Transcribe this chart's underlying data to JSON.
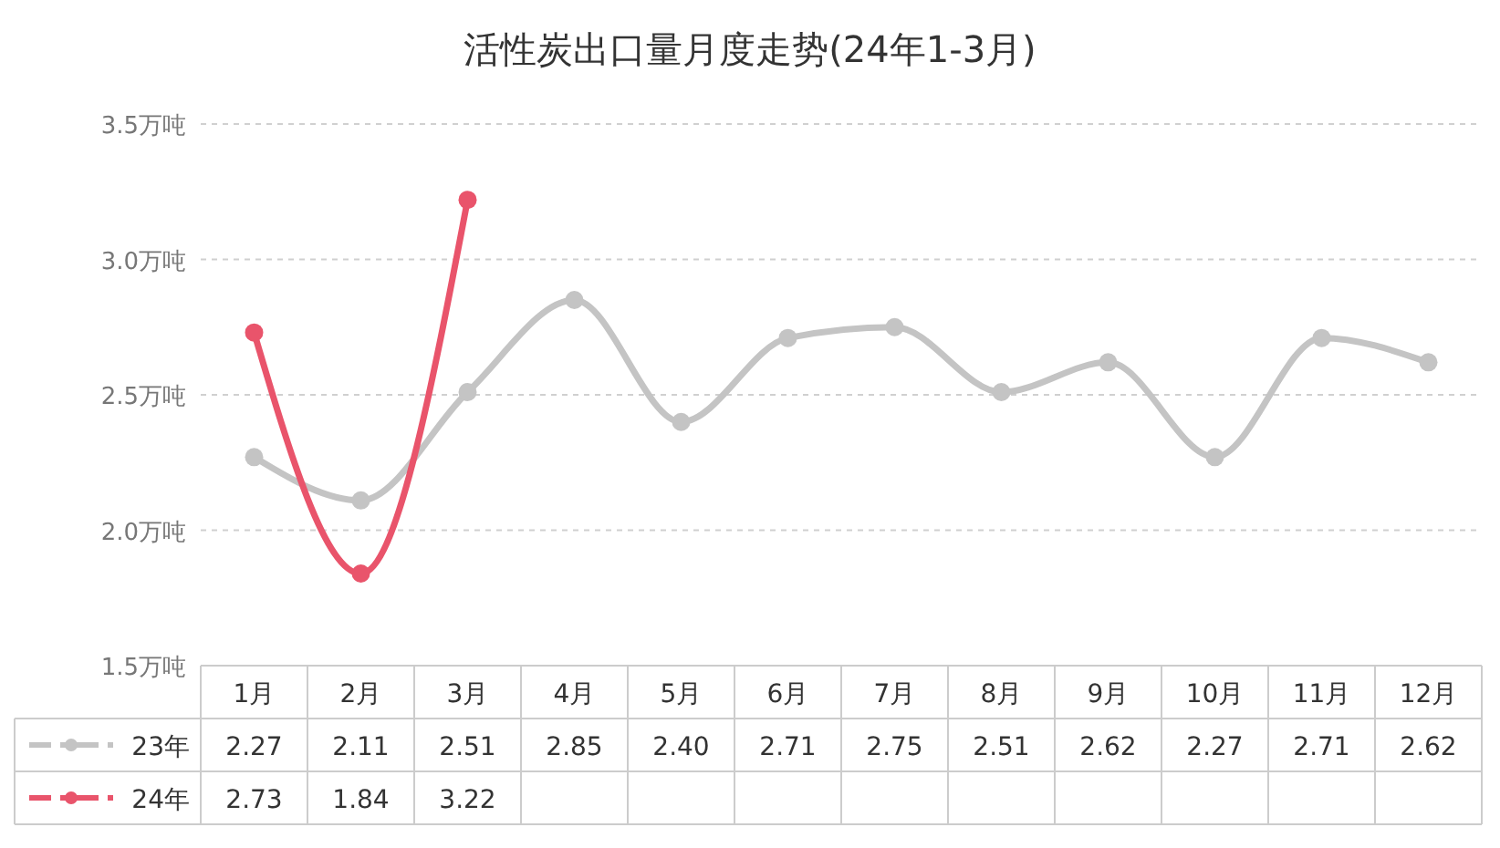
{
  "chart_data": {
    "type": "line",
    "title": "活性炭出口量月度走势(24年1-3月)",
    "categories": [
      "1月",
      "2月",
      "3月",
      "4月",
      "5月",
      "6月",
      "7月",
      "8月",
      "9月",
      "10月",
      "11月",
      "12月"
    ],
    "series": [
      {
        "name": "23年",
        "color": "#c4c4c4",
        "values": [
          2.27,
          2.11,
          2.51,
          2.85,
          2.4,
          2.71,
          2.75,
          2.51,
          2.62,
          2.27,
          2.71,
          2.62
        ],
        "value_labels": [
          "2.27",
          "2.11",
          "2.51",
          "2.85",
          "2.40",
          "2.71",
          "2.75",
          "2.51",
          "2.62",
          "2.27",
          "2.71",
          "2.62"
        ]
      },
      {
        "name": "24年",
        "color": "#e9546b",
        "values": [
          2.73,
          1.84,
          3.22,
          null,
          null,
          null,
          null,
          null,
          null,
          null,
          null,
          null
        ],
        "value_labels": [
          "2.73",
          "1.84",
          "3.22",
          null,
          null,
          null,
          null,
          null,
          null,
          null,
          null,
          null
        ]
      }
    ],
    "ylim": [
      1.5,
      3.5
    ],
    "yticks": [
      {
        "value": 1.5,
        "label": "1.5万吨"
      },
      {
        "value": 2.0,
        "label": "2.0万吨"
      },
      {
        "value": 2.5,
        "label": "2.5万吨"
      },
      {
        "value": 3.0,
        "label": "3.0万吨"
      },
      {
        "value": 3.5,
        "label": "3.5万吨"
      }
    ],
    "grid": "y",
    "marker": "circle",
    "legend": "bottom"
  }
}
